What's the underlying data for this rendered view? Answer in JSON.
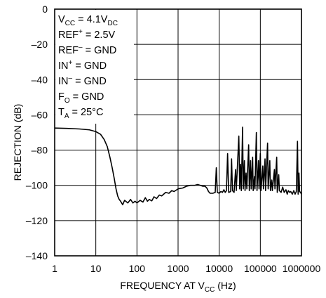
{
  "chart_data": {
    "type": "line",
    "title": "",
    "xlabel": {
      "main": "FREQUENCY AT V",
      "sub": "CC",
      "tail": " (Hz)"
    },
    "ylabel": "REJECTION (dB)",
    "x_scale": "log",
    "xlim": [
      1,
      1000000
    ],
    "ylim": [
      -140,
      0
    ],
    "grid": true,
    "x_ticks": [
      {
        "value": 1,
        "label": "1"
      },
      {
        "value": 10,
        "label": "10"
      },
      {
        "value": 100,
        "label": "100"
      },
      {
        "value": 1000,
        "label": "1000"
      },
      {
        "value": 10000,
        "label": "10000"
      },
      {
        "value": 100000,
        "label": "100000"
      },
      {
        "value": 1000000,
        "label": "1000000"
      }
    ],
    "y_ticks": [
      {
        "value": 0,
        "label": "0"
      },
      {
        "value": -20,
        "label": "–20"
      },
      {
        "value": -40,
        "label": "–40"
      },
      {
        "value": -60,
        "label": "–60"
      },
      {
        "value": -80,
        "label": "–80"
      },
      {
        "value": -100,
        "label": "–100"
      },
      {
        "value": -120,
        "label": "–120"
      },
      {
        "value": -140,
        "label": "–140"
      }
    ],
    "conditions": [
      [
        {
          "t": "V"
        },
        {
          "t": "CC",
          "sub": true
        },
        {
          "t": " = 4.1V"
        },
        {
          "t": "DC",
          "sub": true
        }
      ],
      [
        {
          "t": "REF"
        },
        {
          "t": "+",
          "sup": true
        },
        {
          "t": " = 2.5V"
        }
      ],
      [
        {
          "t": "REF"
        },
        {
          "t": "–",
          "sup": true
        },
        {
          "t": " = GND"
        }
      ],
      [
        {
          "t": "IN"
        },
        {
          "t": "+",
          "sup": true
        },
        {
          "t": " = GND"
        }
      ],
      [
        {
          "t": "IN"
        },
        {
          "t": "–",
          "sup": true
        },
        {
          "t": " = GND"
        }
      ],
      [
        {
          "t": "F"
        },
        {
          "t": "O",
          "sub": true
        },
        {
          "t": " = GND"
        }
      ],
      [
        {
          "t": "T"
        },
        {
          "t": "A",
          "sub": true
        },
        {
          "t": " = 25°C"
        }
      ]
    ],
    "series": [
      {
        "color": "#000000",
        "points": [
          [
            1,
            -67.5
          ],
          [
            2,
            -67.7
          ],
          [
            4,
            -68
          ],
          [
            7,
            -68.5
          ],
          [
            10,
            -69.5
          ],
          [
            13,
            -71
          ],
          [
            16,
            -74
          ],
          [
            19,
            -78
          ],
          [
            22,
            -84
          ],
          [
            25,
            -90
          ],
          [
            28,
            -96
          ],
          [
            31,
            -102
          ],
          [
            34,
            -106
          ],
          [
            37,
            -108
          ],
          [
            40,
            -109
          ],
          [
            45,
            -111
          ],
          [
            50,
            -108.5
          ],
          [
            60,
            -110
          ],
          [
            70,
            -108
          ],
          [
            80,
            -110
          ],
          [
            90,
            -109
          ],
          [
            100,
            -110
          ],
          [
            120,
            -108.5
          ],
          [
            140,
            -109.5
          ],
          [
            160,
            -107
          ],
          [
            180,
            -109
          ],
          [
            200,
            -108
          ],
          [
            230,
            -108.8
          ],
          [
            260,
            -106.5
          ],
          [
            300,
            -107.5
          ],
          [
            350,
            -105.5
          ],
          [
            400,
            -106
          ],
          [
            500,
            -104
          ],
          [
            600,
            -104.5
          ],
          [
            700,
            -103
          ],
          [
            800,
            -103.5
          ],
          [
            1000,
            -102
          ],
          [
            1300,
            -101.5
          ],
          [
            1600,
            -100.5
          ],
          [
            2000,
            -100
          ],
          [
            2500,
            -100
          ],
          [
            3000,
            -99.5
          ],
          [
            3500,
            -100
          ],
          [
            4000,
            -100.5
          ],
          [
            4500,
            -100.5
          ],
          [
            5000,
            -101.5
          ],
          [
            5500,
            -103.5
          ],
          [
            6000,
            -104.5
          ],
          [
            7000,
            -104.5
          ],
          [
            8000,
            -104
          ],
          [
            8500,
            -90
          ],
          [
            9000,
            -104
          ],
          [
            10000,
            -104.5
          ],
          [
            11000,
            -103.5
          ],
          [
            12000,
            -104
          ],
          [
            13000,
            -102.5
          ],
          [
            14000,
            -104
          ],
          [
            15000,
            -103
          ],
          [
            16000,
            -82
          ],
          [
            17000,
            -104
          ],
          [
            19000,
            -103.5
          ],
          [
            20000,
            -85
          ],
          [
            21000,
            -103
          ],
          [
            23000,
            -104
          ],
          [
            25000,
            -91
          ],
          [
            26000,
            -103
          ],
          [
            30000,
            -72
          ],
          [
            31500,
            -102
          ],
          [
            33000,
            -88
          ],
          [
            34500,
            -103
          ],
          [
            37000,
            -67
          ],
          [
            38500,
            -102
          ],
          [
            41000,
            -86
          ],
          [
            42500,
            -103
          ],
          [
            45000,
            -93
          ],
          [
            47000,
            -102
          ],
          [
            52000,
            -77
          ],
          [
            54000,
            -103
          ],
          [
            58000,
            -86
          ],
          [
            60000,
            -102
          ],
          [
            65000,
            -84
          ],
          [
            67000,
            -103
          ],
          [
            72000,
            -95
          ],
          [
            74000,
            -102
          ],
          [
            80000,
            -70
          ],
          [
            83000,
            -103
          ],
          [
            90000,
            -86
          ],
          [
            93000,
            -102
          ],
          [
            100000,
            -82
          ],
          [
            104000,
            -103
          ],
          [
            115000,
            -89
          ],
          [
            119000,
            -102
          ],
          [
            130000,
            -85
          ],
          [
            134000,
            -103
          ],
          [
            150000,
            -76
          ],
          [
            155000,
            -102
          ],
          [
            170000,
            -86
          ],
          [
            176000,
            -103
          ],
          [
            190000,
            -97
          ],
          [
            196000,
            -103
          ],
          [
            220000,
            -91
          ],
          [
            227000,
            -102
          ],
          [
            250000,
            -84
          ],
          [
            258000,
            -104
          ],
          [
            280000,
            -94
          ],
          [
            290000,
            -103
          ],
          [
            320000,
            -104
          ],
          [
            350000,
            -101
          ],
          [
            380000,
            -104
          ],
          [
            420000,
            -102.5
          ],
          [
            450000,
            -105
          ],
          [
            480000,
            -103
          ],
          [
            520000,
            -104
          ],
          [
            550000,
            -103.5
          ],
          [
            600000,
            -105
          ],
          [
            650000,
            -103
          ],
          [
            700000,
            -105
          ],
          [
            750000,
            -103.5
          ],
          [
            800000,
            -75
          ],
          [
            830000,
            -105
          ],
          [
            870000,
            -93
          ],
          [
            900000,
            -103.5
          ],
          [
            950000,
            -104
          ],
          [
            1000000,
            -105
          ]
        ]
      }
    ]
  }
}
